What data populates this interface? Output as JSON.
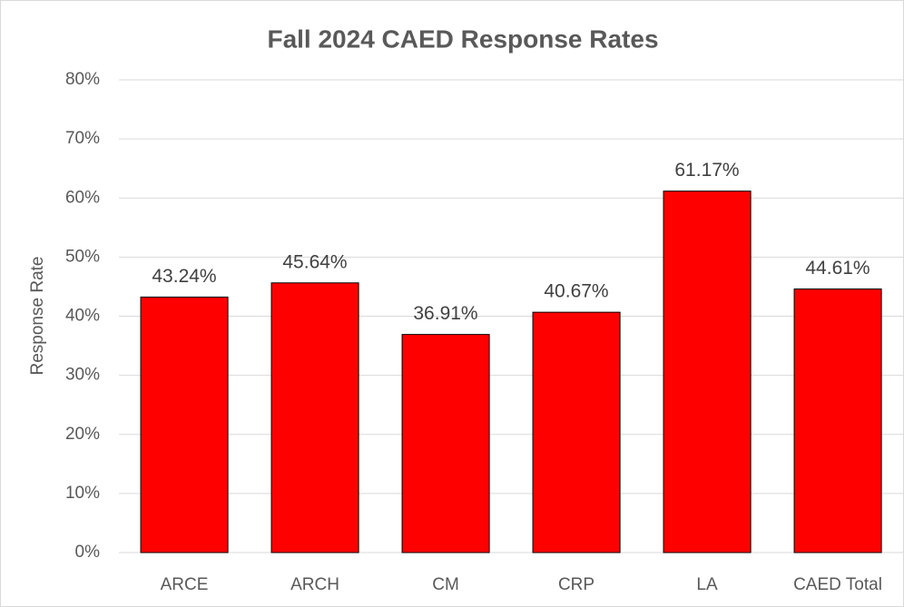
{
  "chart_data": {
    "type": "bar",
    "title": "Fall 2024 CAED Response Rates",
    "y_label": "Response Rate",
    "categories": [
      "ARCE",
      "ARCH",
      "CM",
      "CRP",
      "LA",
      "CAED Total"
    ],
    "values": [
      43.24,
      45.64,
      36.91,
      40.67,
      61.17,
      44.61
    ],
    "value_labels": [
      "43.24%",
      "45.64%",
      "36.91%",
      "40.67%",
      "61.17%",
      "44.61%"
    ],
    "color": "#ff0000",
    "ylim": [
      0,
      80
    ],
    "yticks": [
      {
        "value": 0,
        "label": "0%"
      },
      {
        "value": 10,
        "label": "10%"
      },
      {
        "value": 20,
        "label": "20%"
      },
      {
        "value": 30,
        "label": "30%"
      },
      {
        "value": 40,
        "label": "40%"
      },
      {
        "value": 50,
        "label": "50%"
      },
      {
        "value": 60,
        "label": "60%"
      },
      {
        "value": 70,
        "label": "70%"
      },
      {
        "value": 80,
        "label": "80%"
      }
    ],
    "grid": true
  }
}
